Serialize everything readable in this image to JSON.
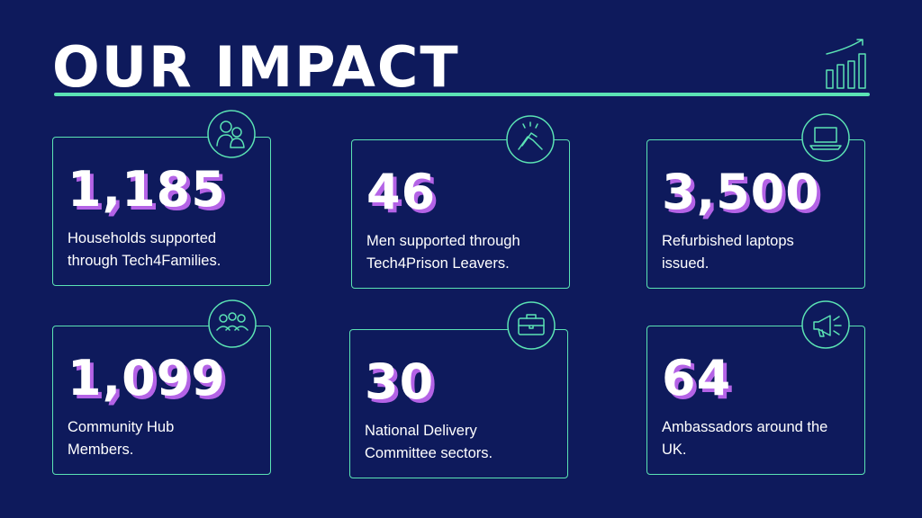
{
  "header": {
    "title": "OUR IMPACT"
  },
  "cards": [
    {
      "value": "1,185",
      "description": "Households supported through Tech4Families."
    },
    {
      "value": "46",
      "description": "Men supported through Tech4Prison Leavers."
    },
    {
      "value": "3,500",
      "description": "Refurbished laptops issued."
    },
    {
      "value": "1,099",
      "description": "Community Hub Members."
    },
    {
      "value": "30",
      "description": "National Delivery Committee sectors."
    },
    {
      "value": "64",
      "description": "Ambassadors around the UK."
    }
  ]
}
